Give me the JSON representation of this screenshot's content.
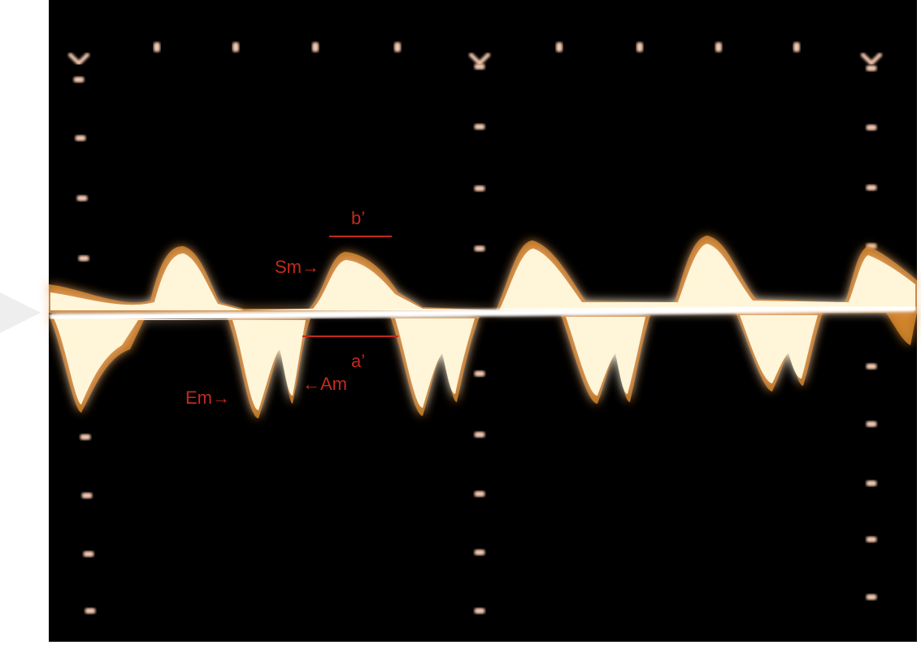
{
  "annotations": {
    "b_prime": "b’",
    "sm": "Sm→",
    "a_prime": "a’",
    "am": "←Am",
    "em": "Em→"
  }
}
